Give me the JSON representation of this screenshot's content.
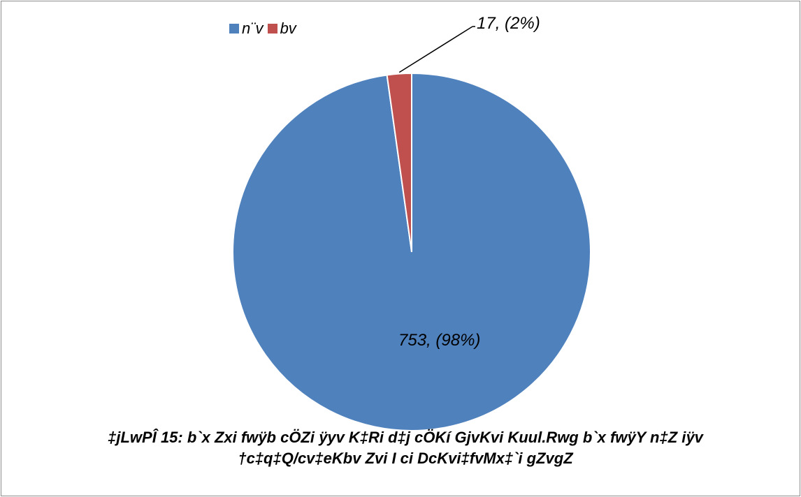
{
  "chart_data": {
    "type": "pie",
    "categories": [
      "n¨v",
      "bv"
    ],
    "values": [
      753,
      17
    ],
    "percent_labels": [
      "(98%)",
      "(2%)"
    ],
    "data_labels": [
      "753, (98%)",
      "17, (2%)"
    ],
    "colors": [
      "#4F81BD",
      "#C0504D"
    ],
    "legend": {
      "placement": "top-left",
      "entries": [
        "n¨v",
        "bv"
      ]
    },
    "caption": {
      "line1": "‡jLwPÎ 15: b`x Zxi fwÿb cÖZi ÿyv K‡Ri d‡j cÖKí GjvKvi Kuul.Rwg b`x fwÿY n‡Z iÿv",
      "line2": "†c‡q‡Q/cv‡eKbv Zvi I ci DcKvi‡fvMx‡`i gZvgZ"
    }
  }
}
